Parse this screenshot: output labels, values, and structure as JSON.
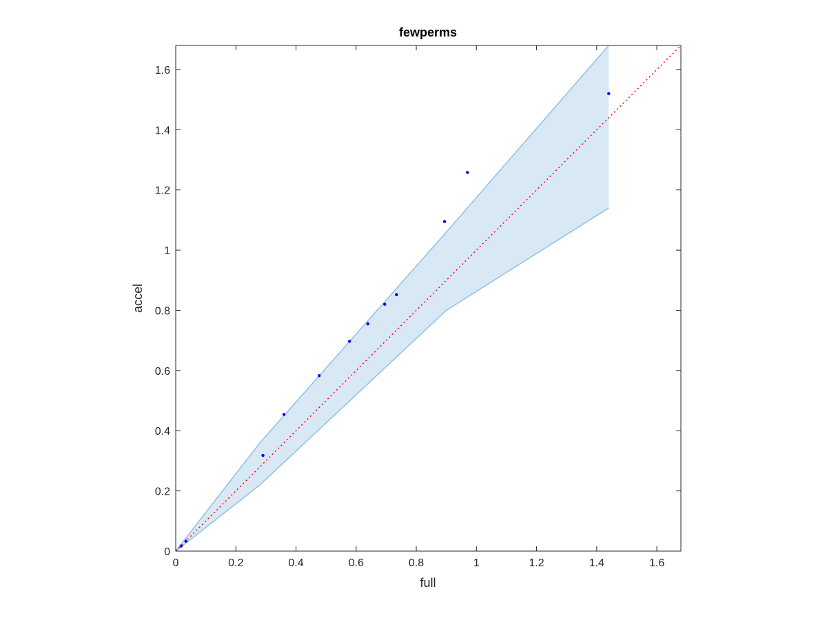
{
  "chart_data": {
    "type": "scatter",
    "title": "fewperms",
    "xlabel": "full",
    "ylabel": "accel",
    "xlim": [
      0,
      1.68
    ],
    "ylim": [
      0,
      1.68
    ],
    "xticks": [
      0,
      0.2,
      0.4,
      0.6,
      0.8,
      1,
      1.2,
      1.4,
      1.6
    ],
    "yticks": [
      0,
      0.2,
      0.4,
      0.6,
      0.8,
      1,
      1.2,
      1.4,
      1.6
    ],
    "xtick_labels": [
      "0",
      "0.2",
      "0.4",
      "0.6",
      "0.8",
      "1",
      "1.2",
      "1.4",
      "1.6"
    ],
    "ytick_labels": [
      "0",
      "0.2",
      "0.4",
      "0.6",
      "0.8",
      "1",
      "1.2",
      "1.4",
      "1.6"
    ],
    "grid": false,
    "points": {
      "x": [
        0.0,
        0.018,
        0.034,
        0.29,
        0.36,
        0.477,
        0.578,
        0.639,
        0.695,
        0.734,
        0.894,
        0.97,
        1.44
      ],
      "y": [
        0.0,
        0.017,
        0.033,
        0.318,
        0.454,
        0.583,
        0.697,
        0.755,
        0.82,
        0.852,
        1.095,
        1.258,
        1.52
      ]
    },
    "band": {
      "x": [
        0,
        0.28,
        0.9,
        1.44
      ],
      "upper": [
        0,
        0.36,
        1.06,
        1.68
      ],
      "lower": [
        0,
        0.22,
        0.8,
        1.14
      ]
    },
    "reference_line": {
      "x": [
        0,
        1.68
      ],
      "y": [
        0,
        1.68
      ],
      "style": "dotted"
    },
    "colors": {
      "points": "#0000ff",
      "band_fill": "#d8e8f4",
      "band_edge": "#8fc2e3",
      "reference_line": "#ff0000",
      "axes": "#262626"
    }
  }
}
